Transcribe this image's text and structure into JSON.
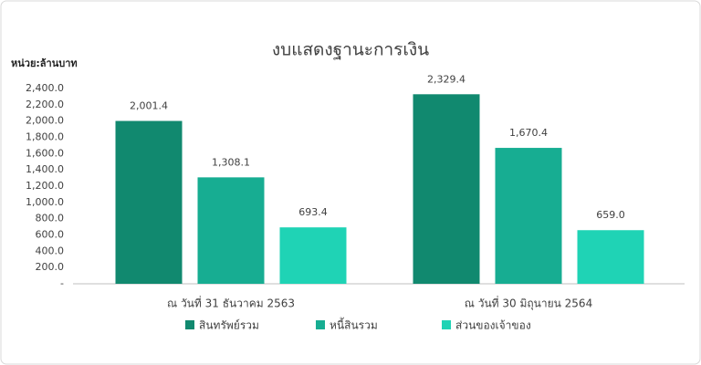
{
  "chart_data": {
    "type": "bar",
    "title": "งบแสดงฐานะการเงิน",
    "y_axis_label": "หน่วย:ล้านบาท",
    "categories": [
      "ณ วันที่ 31 ธันวาคม 2563",
      "ณ วันที่ 30 มิถุนายน 2564"
    ],
    "series": [
      {
        "name": "สินทรัพย์รวม",
        "color": "#11896f",
        "values": [
          2001.4,
          2329.4
        ],
        "value_labels": [
          "2,001.4",
          "2,329.4"
        ]
      },
      {
        "name": "หนี้สินรวม",
        "color": "#17ad92",
        "values": [
          1308.1,
          1670.4
        ],
        "value_labels": [
          "1,308.1",
          "1,670.4"
        ]
      },
      {
        "name": "ส่วนของเจ้าของ",
        "color": "#1fd3b5",
        "values": [
          693.4,
          659.0
        ],
        "value_labels": [
          "693.4",
          "659.0"
        ]
      }
    ],
    "ylim": [
      0,
      2400
    ],
    "yticks": [
      {
        "value": 0,
        "label": "-"
      },
      {
        "value": 200,
        "label": "200.0"
      },
      {
        "value": 400,
        "label": "400.0"
      },
      {
        "value": 600,
        "label": "600.0"
      },
      {
        "value": 800,
        "label": "800.0"
      },
      {
        "value": 1000,
        "label": "1,000.0"
      },
      {
        "value": 1200,
        "label": "1,200.0"
      },
      {
        "value": 1400,
        "label": "1,400.0"
      },
      {
        "value": 1600,
        "label": "1,600.0"
      },
      {
        "value": 1800,
        "label": "1,800.0"
      },
      {
        "value": 2000,
        "label": "2,000.0"
      },
      {
        "value": 2200,
        "label": "2,200.0"
      },
      {
        "value": 2400,
        "label": "2,400.0"
      }
    ],
    "grid": false,
    "legend": "bottom"
  }
}
